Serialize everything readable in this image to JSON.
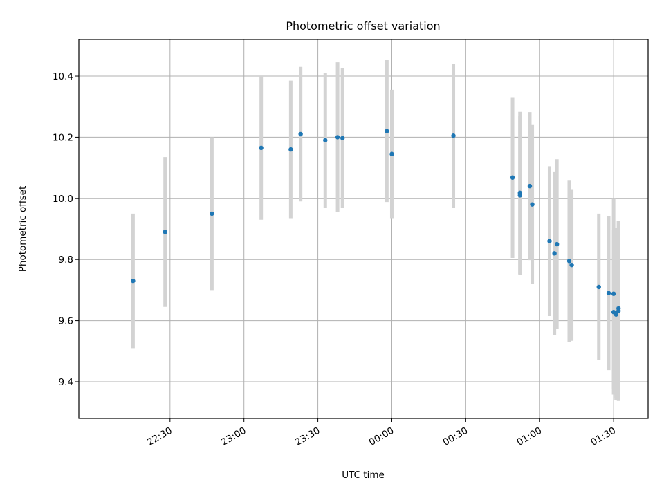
{
  "chart_data": {
    "type": "scatter",
    "title": "Photometric offset variation",
    "xlabel": "UTC time",
    "ylabel": "Photometric offset",
    "x_ticks": [
      "22:30",
      "23:00",
      "23:30",
      "00:00",
      "00:30",
      "01:00",
      "01:30"
    ],
    "x_tick_minutes": [
      -90,
      -60,
      -30,
      0,
      30,
      60,
      90
    ],
    "xlim_minutes": [
      -127,
      104
    ],
    "y_ticks": [
      "9.4",
      "9.6",
      "9.8",
      "10.0",
      "10.2",
      "10.4"
    ],
    "y_tick_values": [
      9.4,
      9.6,
      9.8,
      10.0,
      10.2,
      10.4
    ],
    "ylim": [
      9.28,
      10.52
    ],
    "grid": true,
    "point_color": "#1f77b4",
    "errorbar_color": "#d3d3d3",
    "series": [
      {
        "x": [
          "22:15",
          "22:28",
          "22:47",
          "23:07",
          "23:19",
          "23:23",
          "23:33",
          "23:38",
          "23:40",
          "23:58",
          "00:00",
          "00:25",
          "00:49",
          "00:52",
          "00:52",
          "00:56",
          "00:57",
          "01:04",
          "01:06",
          "01:07",
          "01:12",
          "01:13",
          "01:24",
          "01:28",
          "01:30",
          "01:30",
          "01:31",
          "01:31",
          "01:32",
          "01:32"
        ],
        "x_minutes": [
          -105,
          -92,
          -73,
          -53,
          -41,
          -37,
          -27,
          -22,
          -20,
          -2,
          0,
          25,
          49,
          52,
          52,
          56,
          57,
          64,
          66,
          67,
          72,
          73,
          84,
          88,
          90,
          90,
          91,
          91,
          92,
          92
        ],
        "y": [
          9.73,
          9.89,
          9.95,
          10.165,
          10.16,
          10.21,
          10.19,
          10.2,
          10.197,
          10.22,
          10.145,
          10.205,
          10.068,
          10.01,
          10.018,
          10.04,
          9.98,
          9.86,
          9.82,
          9.85,
          9.795,
          9.782,
          9.71,
          9.69,
          9.628,
          9.688,
          9.62,
          9.625,
          9.64,
          9.632
        ],
        "yerr": [
          0.22,
          0.245,
          0.25,
          0.235,
          0.225,
          0.22,
          0.22,
          0.245,
          0.228,
          0.232,
          0.21,
          0.235,
          0.263,
          0.26,
          0.265,
          0.242,
          0.26,
          0.245,
          0.268,
          0.278,
          0.265,
          0.248,
          0.24,
          0.252,
          0.27,
          0.312,
          0.28,
          0.278,
          0.285,
          0.295
        ]
      }
    ]
  }
}
